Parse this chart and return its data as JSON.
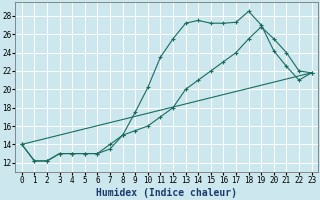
{
  "title": "",
  "xlabel": "Humidex (Indice chaleur)",
  "bg_color": "#cce8ee",
  "grid_color": "#ffffff",
  "line_color": "#1a6b5e",
  "xlim": [
    -0.5,
    23.5
  ],
  "ylim": [
    11.0,
    29.5
  ],
  "xticks": [
    0,
    1,
    2,
    3,
    4,
    5,
    6,
    7,
    8,
    9,
    10,
    11,
    12,
    13,
    14,
    15,
    16,
    17,
    18,
    19,
    20,
    21,
    22,
    23
  ],
  "yticks": [
    12,
    14,
    16,
    18,
    20,
    22,
    24,
    26,
    28
  ],
  "line1_x": [
    0,
    1,
    2,
    3,
    4,
    5,
    6,
    7,
    8,
    9,
    10,
    11,
    12,
    13,
    14,
    15,
    16,
    17,
    18,
    19,
    20,
    21,
    22,
    23
  ],
  "line1_y": [
    14,
    12.2,
    12.2,
    13,
    13,
    13,
    13,
    13.5,
    15,
    17.5,
    20.2,
    23.5,
    25.5,
    27.2,
    27.5,
    27.2,
    27.2,
    27.3,
    28.5,
    27,
    24.2,
    22.5,
    21,
    21.8
  ],
  "line2_x": [
    0,
    1,
    2,
    3,
    4,
    5,
    6,
    7,
    8,
    9,
    10,
    11,
    12,
    13,
    14,
    15,
    16,
    17,
    18,
    19,
    20,
    21,
    22,
    23
  ],
  "line2_y": [
    14,
    12.2,
    12.2,
    13,
    13,
    13,
    13,
    14,
    15,
    15.5,
    16,
    17,
    18,
    20,
    21,
    22,
    23,
    24,
    25.5,
    26.8,
    25.5,
    24,
    22,
    21.8
  ],
  "line3_x": [
    0,
    23
  ],
  "line3_y": [
    14,
    21.8
  ],
  "xlabel_fontsize": 7,
  "tick_fontsize": 5.5
}
